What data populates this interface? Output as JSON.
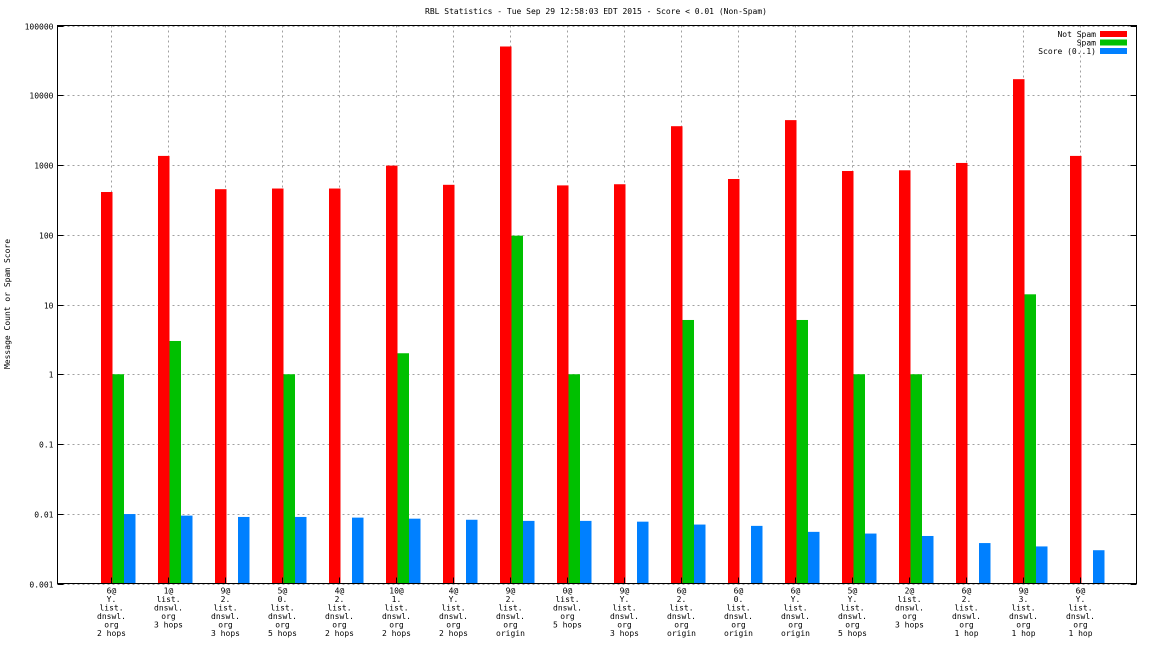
{
  "chart_data": {
    "type": "bar",
    "title": "RBL Statistics - Tue Sep 29 12:58:03 EDT 2015 - Score < 0.01 (Non-Spam)",
    "xlabel": "",
    "ylabel": "Message Count or Spam Score",
    "yscale": "log",
    "ylim": [
      0.001,
      100000
    ],
    "yticks": [
      "0.001",
      "0.01",
      "0.1",
      "1",
      "10",
      "100",
      "1000",
      "10000",
      "100000"
    ],
    "grid": true,
    "legend_position": "top-right",
    "categories": [
      [
        "6@",
        "Y.",
        "list.",
        "dnswl.",
        "org",
        "2 hops"
      ],
      [
        "1@",
        "list.",
        "dnswl.",
        "org",
        "3 hops"
      ],
      [
        "9@",
        "2.",
        "list.",
        "dnswl.",
        "org",
        "3 hops"
      ],
      [
        "5@",
        "0.",
        "list.",
        "dnswl.",
        "org",
        "5 hops"
      ],
      [
        "4@",
        "2.",
        "list.",
        "dnswl.",
        "org",
        "2 hops"
      ],
      [
        "10@",
        "1.",
        "list.",
        "dnswl.",
        "org",
        "2 hops"
      ],
      [
        "4@",
        "Y.",
        "list.",
        "dnswl.",
        "org",
        "2 hops"
      ],
      [
        "9@",
        "2.",
        "list.",
        "dnswl.",
        "org",
        "origin"
      ],
      [
        "0@",
        "list.",
        "dnswl.",
        "org",
        "5 hops"
      ],
      [
        "9@",
        "Y.",
        "list.",
        "dnswl.",
        "org",
        "3 hops"
      ],
      [
        "6@",
        "2.",
        "list.",
        "dnswl.",
        "org",
        "origin"
      ],
      [
        "6@",
        "0.",
        "list.",
        "dnswl.",
        "org",
        "origin"
      ],
      [
        "6@",
        "Y.",
        "list.",
        "dnswl.",
        "org",
        "origin"
      ],
      [
        "5@",
        "Y.",
        "list.",
        "dnswl.",
        "org",
        "5 hops"
      ],
      [
        "2@",
        "list.",
        "dnswl.",
        "org",
        "3 hops"
      ],
      [
        "6@",
        "2.",
        "list.",
        "dnswl.",
        "org",
        "1 hop"
      ],
      [
        "9@",
        "3.",
        "list.",
        "dnswl.",
        "org",
        "1 hop"
      ],
      [
        "6@",
        "Y.",
        "list.",
        "dnswl.",
        "org",
        "1 hop"
      ]
    ],
    "series": [
      {
        "name": "Not Spam",
        "color": "#ff0000",
        "values": [
          410,
          1350,
          450,
          460,
          460,
          980,
          520,
          50000,
          510,
          530,
          3600,
          630,
          4400,
          820,
          840,
          1070,
          17000,
          1350
        ]
      },
      {
        "name": "Spam",
        "color": "#00c000",
        "values": [
          1,
          3,
          null,
          1,
          null,
          2,
          null,
          97,
          1,
          null,
          6,
          null,
          6,
          1,
          1,
          null,
          14,
          null
        ]
      },
      {
        "name": "Score (0..1)",
        "color": "#0080ff",
        "values": [
          0.0099,
          0.0094,
          0.009,
          0.009,
          0.0088,
          0.0085,
          0.0082,
          0.0079,
          0.0079,
          0.0077,
          0.007,
          0.0067,
          0.0055,
          0.0052,
          0.0048,
          0.0038,
          0.0034,
          0.003
        ]
      }
    ]
  }
}
